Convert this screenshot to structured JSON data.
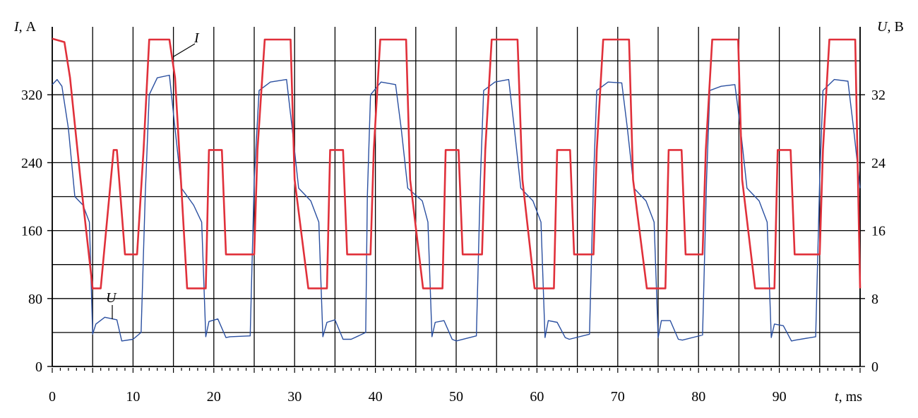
{
  "chart_data": {
    "type": "line",
    "left_axis": {
      "label_var": "I",
      "label_unit": ", А",
      "ticks": [
        0,
        80,
        160,
        240,
        320
      ],
      "range": [
        0,
        400
      ]
    },
    "right_axis": {
      "label_var": "U",
      "label_unit": ", В",
      "ticks": [
        0,
        8,
        16,
        24,
        32
      ],
      "range": [
        0,
        40
      ]
    },
    "x_axis": {
      "label_var": "t",
      "label_unit": ", ms",
      "ticks": [
        0,
        10,
        20,
        30,
        40,
        50,
        60,
        70,
        80,
        90
      ],
      "range": [
        0,
        100
      ]
    },
    "grid": true,
    "series": [
      {
        "name": "I",
        "color": "#e0303a",
        "axis": "left",
        "x": [
          0,
          1.5,
          2.2,
          3.5,
          5.0,
          5.5,
          6.0,
          7.6,
          8.0,
          9.0,
          10.0,
          10.5,
          11.3,
          12.0,
          14.5,
          15.2,
          16.7,
          18.5,
          19.0,
          19.4,
          21.0,
          21.5,
          22.5,
          25.0,
          25.4,
          26.3,
          27.0,
          29.5,
          30.0,
          31.7,
          33.5,
          34.0,
          34.4,
          36.0,
          36.5,
          37.5,
          39.4,
          39.8,
          40.6,
          41.3,
          43.8,
          44.3,
          45.9,
          47.8,
          48.3,
          48.7,
          50.3,
          50.8,
          51.8,
          53.2,
          53.6,
          54.4,
          55.1,
          57.6,
          58.2,
          59.7,
          61.6,
          62.1,
          62.5,
          64.1,
          64.6,
          65.6,
          67.0,
          67.4,
          68.2,
          68.9,
          71.4,
          71.9,
          73.6,
          75.4,
          75.9,
          76.3,
          77.9,
          78.4,
          79.4,
          80.5,
          80.9,
          81.7,
          82.4,
          84.9,
          85.4,
          87.0,
          88.9,
          89.4,
          89.8,
          91.4,
          91.9,
          92.9,
          95.0,
          95.4,
          96.2,
          96.9,
          99.4,
          100
        ],
        "y": [
          386,
          382,
          340,
          220,
          92,
          92,
          92,
          255,
          255,
          132,
          132,
          132,
          255,
          385,
          385,
          340,
          92,
          92,
          92,
          255,
          255,
          132,
          132,
          132,
          255,
          385,
          385,
          385,
          220,
          92,
          92,
          92,
          255,
          255,
          132,
          132,
          132,
          255,
          385,
          385,
          385,
          220,
          92,
          92,
          92,
          255,
          255,
          132,
          132,
          132,
          255,
          385,
          385,
          385,
          220,
          92,
          92,
          92,
          255,
          255,
          132,
          132,
          132,
          255,
          385,
          385,
          385,
          220,
          92,
          92,
          92,
          255,
          255,
          132,
          132,
          132,
          255,
          385,
          385,
          385,
          220,
          92,
          92,
          92,
          255,
          255,
          132,
          132,
          132,
          255,
          385,
          385,
          385,
          92
        ]
      },
      {
        "name": "U",
        "color": "#2a4fa0",
        "axis": "right",
        "x": [
          0,
          0.6,
          1.2,
          2.0,
          2.8,
          3.8,
          4.6,
          5.0,
          5.4,
          6.5,
          8.0,
          8.6,
          10.0,
          11.0,
          11.5,
          12.0,
          13.0,
          14.5,
          15.2,
          16.0,
          17.5,
          18.5,
          19.0,
          19.4,
          20.5,
          21.5,
          22.0,
          24.5,
          25.0,
          25.6,
          27.0,
          29.0,
          29.7,
          30.5,
          32.0,
          33.0,
          33.5,
          34.0,
          35.0,
          36.0,
          37.0,
          38.8,
          39.0,
          39.4,
          40.7,
          42.5,
          43.2,
          44.0,
          45.8,
          46.5,
          47.0,
          47.4,
          48.5,
          49.5,
          50.0,
          52.5,
          53.0,
          53.4,
          54.8,
          56.5,
          57.2,
          58.0,
          59.5,
          60.5,
          61.0,
          61.4,
          62.5,
          63.5,
          64.0,
          66.5,
          67.0,
          67.4,
          68.8,
          70.5,
          71.2,
          72.0,
          73.5,
          74.5,
          75.0,
          75.4,
          76.5,
          77.5,
          78.0,
          80.5,
          81.0,
          81.4,
          82.8,
          84.5,
          85.2,
          86.0,
          87.5,
          88.5,
          89.0,
          89.4,
          90.5,
          91.5,
          92.0,
          94.5,
          95.0,
          95.4,
          96.8,
          98.5,
          99.2,
          100
        ],
        "y": [
          33.2,
          33.8,
          33.0,
          28.0,
          20.0,
          19.0,
          17.0,
          3.8,
          5.0,
          5.8,
          5.5,
          3.0,
          3.2,
          4.0,
          20.0,
          32.0,
          34.0,
          34.3,
          28.0,
          21.0,
          19.0,
          17.0,
          3.5,
          5.3,
          5.6,
          3.4,
          3.5,
          3.6,
          22.0,
          32.5,
          33.5,
          33.8,
          28.0,
          21.0,
          19.5,
          17.0,
          3.5,
          5.2,
          5.5,
          3.2,
          3.2,
          4.0,
          20.0,
          32.0,
          33.5,
          33.2,
          28.0,
          21.0,
          19.5,
          17.0,
          3.5,
          5.2,
          5.4,
          3.2,
          3.0,
          3.6,
          22.0,
          32.5,
          33.5,
          33.8,
          28.0,
          21.0,
          19.5,
          17.0,
          3.4,
          5.4,
          5.2,
          3.4,
          3.2,
          3.8,
          22.0,
          32.5,
          33.5,
          33.4,
          28.0,
          21.0,
          19.5,
          17.0,
          3.4,
          5.4,
          5.4,
          3.2,
          3.1,
          3.7,
          22.0,
          32.5,
          33.0,
          33.2,
          28.0,
          21.0,
          19.5,
          17.0,
          3.4,
          5.0,
          4.8,
          3.0,
          3.1,
          3.5,
          22.0,
          32.5,
          33.8,
          33.6,
          28.0,
          21.0
        ]
      }
    ]
  }
}
